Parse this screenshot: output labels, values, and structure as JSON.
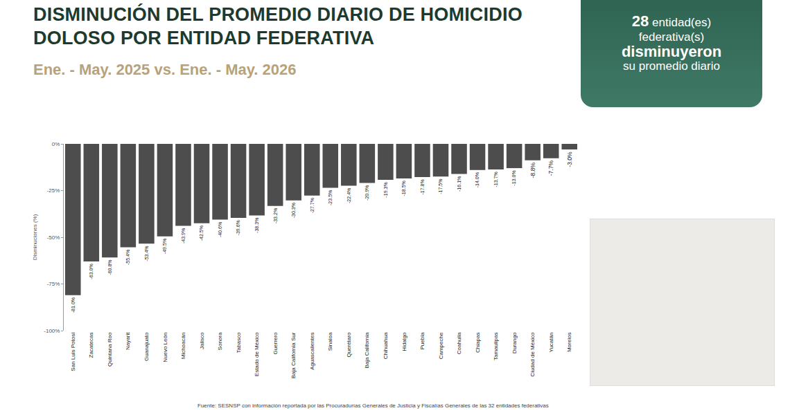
{
  "chart_data": {
    "type": "bar",
    "title": "DISMINUCIÓN DEL PROMEDIO DIARIO DE HOMICIDIO DOLOSO POR ENTIDAD FEDERATIVA",
    "subtitle": "Ene. - May. 2025 vs. Ene. - May. 2026",
    "y_label": "Disminuciones (%)",
    "categories": [
      "San Luis Potosí",
      "Zacatecas",
      "Quintana Roo",
      "Nayarit",
      "Guanajuato",
      "Nuevo León",
      "Michoacán",
      "Jalisco",
      "Sonora",
      "Tabasco",
      "Estado de México",
      "Guerrero",
      "Baja California Sur",
      "Aguascalientes",
      "Sinaloa",
      "Querétaro",
      "Baja California",
      "Chihuahua",
      "Hidalgo",
      "Puebla",
      "Campeche",
      "Coahuila",
      "Chiapas",
      "Tamaulipas",
      "Durango",
      "Ciudad de México",
      "Yucatán",
      "Morelos"
    ],
    "values": [
      -81.0,
      -63.0,
      -60.8,
      -55.4,
      -53.4,
      -49.5,
      -43.9,
      -42.5,
      -40.6,
      -39.6,
      -38.3,
      -33.2,
      -30.3,
      -27.7,
      -23.5,
      -22.4,
      -20.9,
      -19.3,
      -18.5,
      -17.8,
      -17.5,
      -16.1,
      -14.0,
      -13.7,
      -13.0,
      -8.8,
      -7.7,
      -3.0
    ],
    "value_labels": [
      "-81.0%",
      "-63.0%",
      "-60.8%",
      "-55.4%",
      "-53.4%",
      "-49.5%",
      "-43.9%",
      "-42.5%",
      "-40.6%",
      "-39.6%",
      "-38.3%",
      "-33.2%",
      "-30.3%",
      "-27.7%",
      "-23.5%",
      "-22.4%",
      "-20.9%",
      "-19.3%",
      "-18.5%",
      "-17.8%",
      "-17.5%",
      "-16.1%",
      "-14.0%",
      "-13.7%",
      "-13.0%",
      "-8.8%",
      "-7.7%",
      "-3.0%"
    ],
    "color": "#4d4d4d",
    "ylim": [
      -100,
      0
    ],
    "yticks": [
      {
        "value": 0,
        "label": "0%"
      },
      {
        "value": -25,
        "label": "-25%"
      },
      {
        "value": -50,
        "label": "-50%"
      },
      {
        "value": -75,
        "label": "-75%"
      },
      {
        "value": -100,
        "label": "-100%"
      }
    ],
    "grid": false,
    "data_labels": true
  },
  "badge": {
    "count": "28",
    "lines": [
      "entidad(es)",
      "federativa(s)",
      "disminuyeron",
      "su promedio diario"
    ]
  },
  "source": "Fuente: SESNSP con información reportada por las Procuradurías Generales de Justicia y Fiscalías Generales de las 32 entidades federativas"
}
